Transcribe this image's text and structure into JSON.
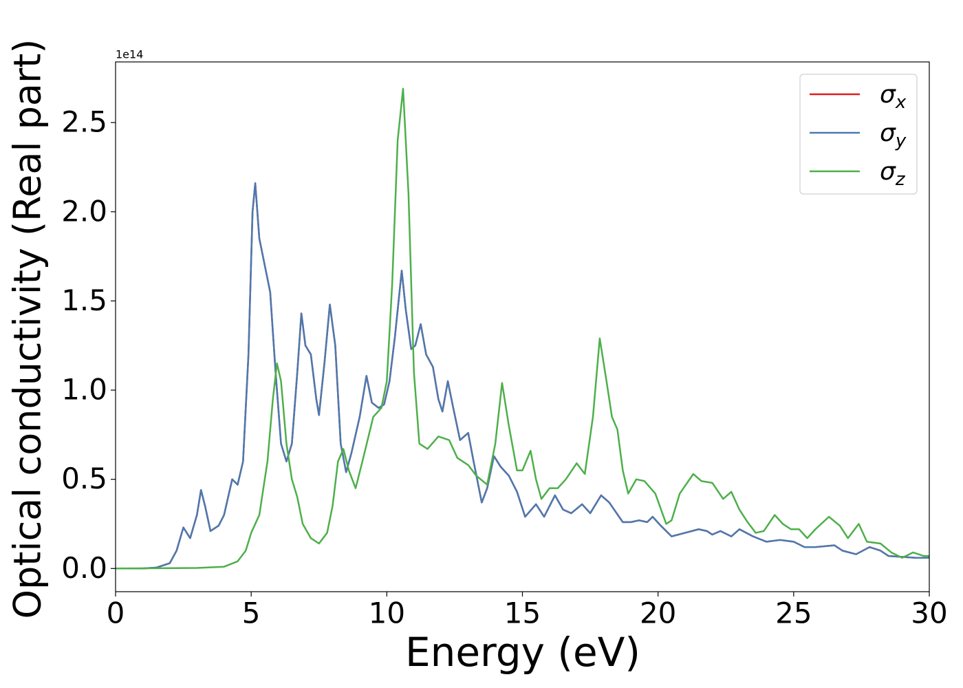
{
  "chart_data": {
    "type": "line",
    "xlabel": "Energy (eV)",
    "ylabel": "Optical conductivity (Real part)",
    "y_offset_label": "1e14",
    "xlim": [
      0,
      30
    ],
    "ylim": [
      -0.13,
      2.84
    ],
    "xticks": [
      0,
      5,
      10,
      15,
      20,
      25,
      30
    ],
    "yticks": [
      {
        "value": 0,
        "label": "0.0"
      },
      0.5,
      {
        "value": 1,
        "label": "1.0"
      },
      1.5,
      {
        "value": 2,
        "label": "2.0"
      },
      2.5
    ],
    "legend": "upper right",
    "series": [
      {
        "name": "σx",
        "color": "#e41a1c",
        "x": [
          0,
          1,
          1.5,
          2,
          2.25,
          2.5,
          2.75,
          3,
          3.15,
          3.3,
          3.5,
          3.8,
          4,
          4.3,
          4.5,
          4.7,
          4.9,
          5.05,
          5.15,
          5.3,
          5.5,
          5.7,
          5.9,
          6.1,
          6.3,
          6.5,
          6.7,
          6.85,
          7,
          7.2,
          7.4,
          7.5,
          7.7,
          7.9,
          8.1,
          8.3,
          8.5,
          8.7,
          9,
          9.25,
          9.45,
          9.7,
          9.9,
          10.1,
          10.3,
          10.55,
          10.7,
          10.9,
          11.05,
          11.25,
          11.45,
          11.7,
          11.9,
          12.05,
          12.25,
          12.45,
          12.7,
          13,
          13.2,
          13.5,
          13.7,
          13.95,
          14.2,
          14.5,
          14.8,
          15.1,
          15.5,
          15.8,
          16.2,
          16.5,
          16.8,
          17.2,
          17.5,
          17.9,
          18.2,
          18.7,
          19,
          19.3,
          19.6,
          19.8,
          20.1,
          20.5,
          21,
          21.5,
          21.8,
          22,
          22.3,
          22.7,
          23,
          23.5,
          24,
          24.5,
          25,
          25.4,
          25.8,
          26.5,
          26.8,
          27.3,
          27.8,
          28.2,
          28.5,
          29.5,
          30
        ],
        "values": [
          0,
          0,
          0.005,
          0.03,
          0.1,
          0.23,
          0.17,
          0.3,
          0.44,
          0.35,
          0.21,
          0.24,
          0.3,
          0.5,
          0.47,
          0.6,
          1.2,
          2.0,
          2.16,
          1.85,
          1.7,
          1.55,
          1.1,
          0.7,
          0.6,
          0.7,
          1.1,
          1.43,
          1.25,
          1.2,
          0.95,
          0.86,
          1.15,
          1.48,
          1.25,
          0.7,
          0.54,
          0.65,
          0.85,
          1.08,
          0.93,
          0.9,
          0.92,
          1.05,
          1.3,
          1.67,
          1.45,
          1.23,
          1.25,
          1.37,
          1.2,
          1.13,
          0.95,
          0.88,
          1.05,
          0.9,
          0.72,
          0.76,
          0.6,
          0.37,
          0.45,
          0.63,
          0.57,
          0.52,
          0.43,
          0.29,
          0.36,
          0.29,
          0.41,
          0.33,
          0.31,
          0.36,
          0.31,
          0.41,
          0.37,
          0.26,
          0.26,
          0.27,
          0.26,
          0.29,
          0.24,
          0.18,
          0.2,
          0.22,
          0.21,
          0.19,
          0.21,
          0.18,
          0.22,
          0.18,
          0.15,
          0.16,
          0.15,
          0.12,
          0.12,
          0.13,
          0.1,
          0.08,
          0.12,
          0.1,
          0.07,
          0.06,
          0.06
        ]
      },
      {
        "name": "σy",
        "color": "#4a7ab0",
        "x": [
          0,
          1,
          1.5,
          2,
          2.25,
          2.5,
          2.75,
          3,
          3.15,
          3.3,
          3.5,
          3.8,
          4,
          4.3,
          4.5,
          4.7,
          4.9,
          5.05,
          5.15,
          5.3,
          5.5,
          5.7,
          5.9,
          6.1,
          6.3,
          6.5,
          6.7,
          6.85,
          7,
          7.2,
          7.4,
          7.5,
          7.7,
          7.9,
          8.1,
          8.3,
          8.5,
          8.7,
          9,
          9.25,
          9.45,
          9.7,
          9.9,
          10.1,
          10.3,
          10.55,
          10.7,
          10.9,
          11.05,
          11.25,
          11.45,
          11.7,
          11.9,
          12.05,
          12.25,
          12.45,
          12.7,
          13,
          13.2,
          13.5,
          13.7,
          13.95,
          14.2,
          14.5,
          14.8,
          15.1,
          15.5,
          15.8,
          16.2,
          16.5,
          16.8,
          17.2,
          17.5,
          17.9,
          18.2,
          18.7,
          19,
          19.3,
          19.6,
          19.8,
          20.1,
          20.5,
          21,
          21.5,
          21.8,
          22,
          22.3,
          22.7,
          23,
          23.5,
          24,
          24.5,
          25,
          25.4,
          25.8,
          26.5,
          26.8,
          27.3,
          27.8,
          28.2,
          28.5,
          29.5,
          30
        ],
        "values": [
          0,
          0,
          0.005,
          0.03,
          0.1,
          0.23,
          0.17,
          0.3,
          0.44,
          0.35,
          0.21,
          0.24,
          0.3,
          0.5,
          0.47,
          0.6,
          1.2,
          2.0,
          2.16,
          1.85,
          1.7,
          1.55,
          1.1,
          0.7,
          0.6,
          0.7,
          1.1,
          1.43,
          1.25,
          1.2,
          0.95,
          0.86,
          1.15,
          1.48,
          1.25,
          0.7,
          0.54,
          0.65,
          0.85,
          1.08,
          0.93,
          0.9,
          0.92,
          1.05,
          1.3,
          1.67,
          1.45,
          1.23,
          1.25,
          1.37,
          1.2,
          1.13,
          0.95,
          0.88,
          1.05,
          0.9,
          0.72,
          0.76,
          0.6,
          0.37,
          0.45,
          0.63,
          0.57,
          0.52,
          0.43,
          0.29,
          0.36,
          0.29,
          0.41,
          0.33,
          0.31,
          0.36,
          0.31,
          0.41,
          0.37,
          0.26,
          0.26,
          0.27,
          0.26,
          0.29,
          0.24,
          0.18,
          0.2,
          0.22,
          0.21,
          0.19,
          0.21,
          0.18,
          0.22,
          0.18,
          0.15,
          0.16,
          0.15,
          0.12,
          0.12,
          0.13,
          0.1,
          0.08,
          0.12,
          0.1,
          0.07,
          0.06,
          0.06
        ]
      },
      {
        "name": "σz",
        "color": "#4daf4a",
        "x": [
          0,
          3,
          4,
          4.5,
          4.8,
          5,
          5.3,
          5.6,
          5.8,
          5.95,
          6.1,
          6.3,
          6.5,
          6.7,
          6.9,
          7.2,
          7.5,
          7.8,
          8,
          8.2,
          8.4,
          8.6,
          8.85,
          9.1,
          9.5,
          9.8,
          10,
          10.2,
          10.4,
          10.6,
          10.8,
          11,
          11.2,
          11.5,
          11.9,
          12.3,
          12.6,
          13,
          13.3,
          13.7,
          14,
          14.25,
          14.5,
          14.8,
          15,
          15.3,
          15.5,
          15.7,
          16,
          16.3,
          16.6,
          17,
          17.3,
          17.6,
          17.85,
          18.1,
          18.3,
          18.5,
          18.7,
          18.9,
          19.2,
          19.5,
          19.9,
          20.3,
          20.5,
          20.8,
          21.3,
          21.6,
          22,
          22.4,
          22.7,
          23,
          23.3,
          23.6,
          23.9,
          24.3,
          24.6,
          24.9,
          25.2,
          25.5,
          25.8,
          26.3,
          26.7,
          27,
          27.4,
          27.7,
          28.2,
          28.6,
          29,
          29.4,
          29.8,
          30
        ],
        "values": [
          0,
          0.003,
          0.01,
          0.04,
          0.1,
          0.2,
          0.3,
          0.6,
          0.95,
          1.15,
          1.05,
          0.7,
          0.5,
          0.4,
          0.25,
          0.17,
          0.14,
          0.2,
          0.35,
          0.6,
          0.67,
          0.55,
          0.45,
          0.6,
          0.85,
          0.9,
          1.05,
          1.6,
          2.4,
          2.69,
          2.1,
          1.1,
          0.7,
          0.67,
          0.74,
          0.72,
          0.62,
          0.58,
          0.52,
          0.47,
          0.7,
          1.04,
          0.8,
          0.55,
          0.55,
          0.66,
          0.5,
          0.39,
          0.45,
          0.45,
          0.5,
          0.59,
          0.53,
          0.85,
          1.29,
          1.05,
          0.85,
          0.78,
          0.55,
          0.42,
          0.5,
          0.49,
          0.42,
          0.25,
          0.27,
          0.42,
          0.53,
          0.49,
          0.48,
          0.39,
          0.43,
          0.33,
          0.26,
          0.2,
          0.21,
          0.3,
          0.25,
          0.22,
          0.22,
          0.17,
          0.22,
          0.29,
          0.24,
          0.17,
          0.25,
          0.15,
          0.14,
          0.09,
          0.06,
          0.09,
          0.07,
          0.07
        ]
      }
    ]
  }
}
